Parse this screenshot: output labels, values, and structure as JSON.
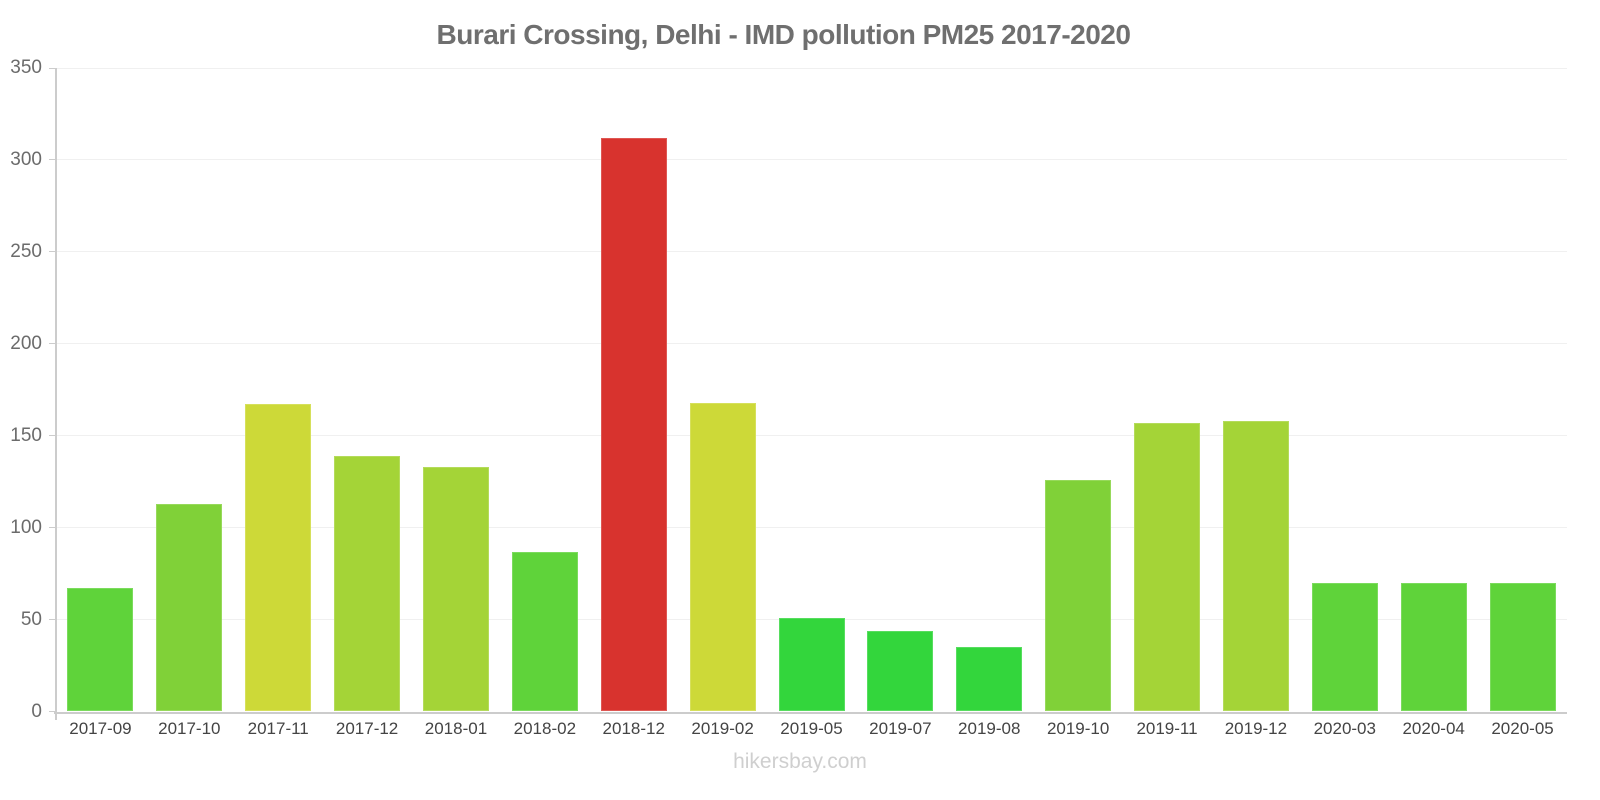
{
  "title": "Burari Crossing, Delhi - IMD pollution PM25 2017-2020",
  "footer": {
    "text": "hikersbay.com"
  },
  "chart_data": {
    "type": "bar",
    "title": "Burari Crossing, Delhi - IMD pollution PM25 2017-2020",
    "xlabel": "",
    "ylabel": "",
    "categories": [
      "2017-09",
      "2017-10",
      "2017-11",
      "2017-12",
      "2018-01",
      "2018-02",
      "2018-12",
      "2019-02",
      "2019-05",
      "2019-07",
      "2019-08",
      "2019-10",
      "2019-11",
      "2019-12",
      "2020-03",
      "2020-04",
      "2020-05"
    ],
    "values": [
      67,
      113,
      167,
      139,
      133,
      87,
      312,
      168,
      51,
      44,
      35,
      126,
      157,
      158,
      70,
      70,
      70
    ],
    "bar_colors": [
      "#5fd33a",
      "#80d138",
      "#cdd938",
      "#a4d437",
      "#a4d437",
      "#5fd33a",
      "#d8332e",
      "#cdd938",
      "#33d63c",
      "#33d63c",
      "#33d63c",
      "#80d138",
      "#a4d437",
      "#a4d437",
      "#5fd33a",
      "#5fd33a",
      "#5fd33a"
    ],
    "yticks": [
      0,
      50,
      100,
      150,
      200,
      250,
      300,
      350
    ],
    "ylim": [
      0,
      350
    ],
    "grid": true,
    "legend": false
  },
  "colors": {
    "background": "#ffffff",
    "title_text": "#6f6f6f",
    "axis_line": "#cccccc",
    "grid_line": "#f0f0f0",
    "y_label_text": "#6b6b6b",
    "x_label_text": "#444444",
    "footer_text": "#cfcfcf",
    "high_pollution": "#d8332e",
    "low_pollution": "#33d63c"
  }
}
